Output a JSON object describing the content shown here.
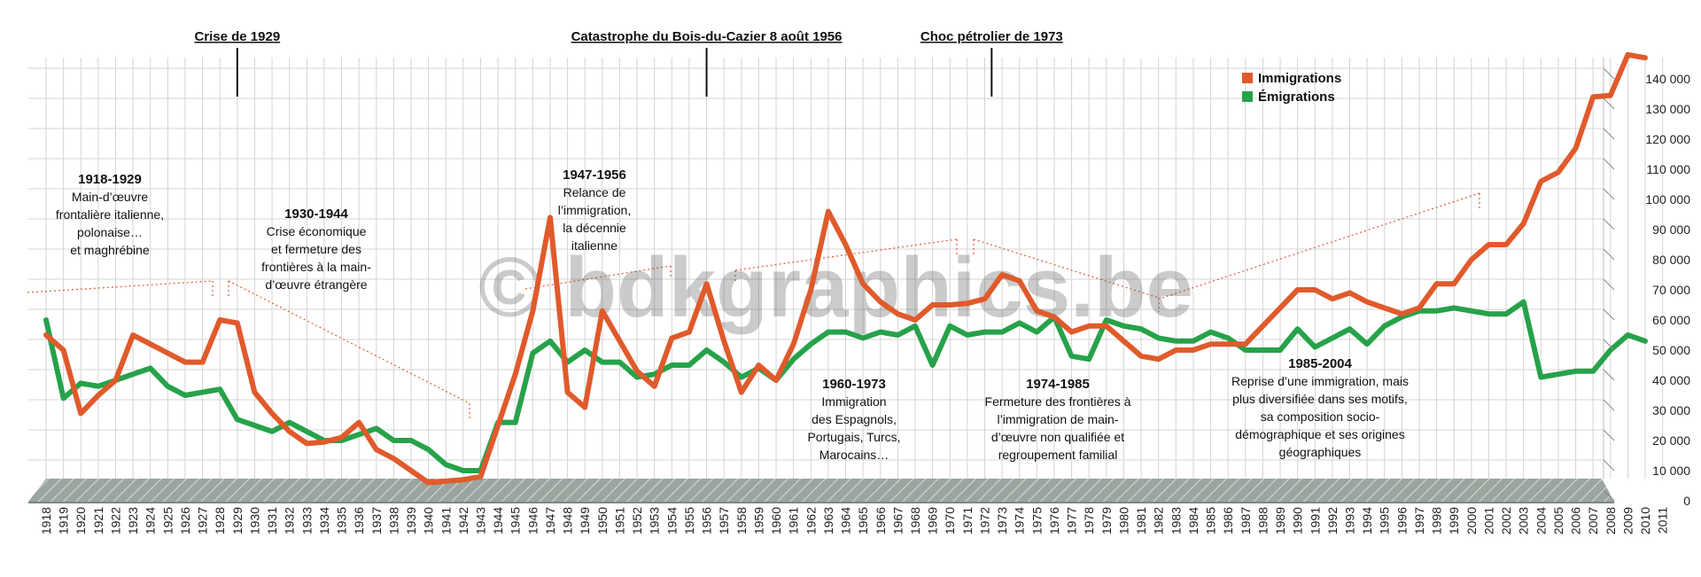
{
  "colors": {
    "immigration": "#e05a2b",
    "emigration": "#26a24a",
    "grid": "#d4d4d4",
    "base": "#9aa59f",
    "guide": "#e05a2b"
  },
  "watermark": "© bdkgraphics.be",
  "events": [
    {
      "label": "Crise de 1929",
      "year": 1929
    },
    {
      "label": "Catastrophe du Bois-du-Cazier 8 août 1956",
      "year": 1956
    },
    {
      "label": "Choc pétrolier de 1973",
      "year": 1972.4
    }
  ],
  "annotations": [
    {
      "title": "1918-1929",
      "lines": [
        "Main-d’œuvre",
        "frontalière italienne,",
        "polonaise…",
        "et maghrébine"
      ]
    },
    {
      "title": "1930-1944",
      "lines": [
        "Crise économique",
        "et fermeture des",
        "frontières à la main-",
        "d’œuvre étrangère"
      ]
    },
    {
      "title": "1947-1956",
      "lines": [
        "Relance de",
        "l’immigration,",
        "la décennie",
        "italienne"
      ]
    },
    {
      "title": "1960-1973",
      "lines": [
        "Immigration",
        "des Espagnols,",
        "Portugais, Turcs,",
        "Marocains…"
      ]
    },
    {
      "title": "1974-1985",
      "lines": [
        "Fermeture des frontières à",
        "l’immigration de main-",
        "d’œuvre non qualifiée et",
        "regroupement familial"
      ]
    },
    {
      "title": "1985-2004",
      "lines": [
        "Reprise d’une immigration, mais",
        "plus diversifiée dans ses motifs,",
        "sa composition socio-",
        "démographique et ses origines",
        "géographiques"
      ]
    }
  ],
  "chart_data": {
    "type": "line",
    "title": "",
    "xlabel": "",
    "ylabel": "",
    "xlim": [
      1918,
      2011
    ],
    "ylim": [
      0,
      150000
    ],
    "y_ticks": [
      0,
      10000,
      20000,
      30000,
      40000,
      50000,
      60000,
      70000,
      80000,
      90000,
      100000,
      110000,
      120000,
      130000,
      140000
    ],
    "y_tick_labels": [
      "0",
      "10 000",
      "20 000",
      "30 000",
      "40 000",
      "50 000",
      "60 000",
      "70 000",
      "80 000",
      "90 000",
      "100 000",
      "110 000",
      "120 000",
      "130 000",
      "140 000"
    ],
    "x_tick_labels": [
      "1918",
      "1919",
      "1920",
      "1921",
      "1922",
      "1923",
      "1924",
      "1925",
      "1926",
      "1927",
      "1928",
      "1929",
      "1930",
      "1931",
      "1932",
      "1933",
      "1934",
      "1935",
      "1936",
      "1937",
      "1938",
      "1939",
      "1940",
      "1941",
      "1942",
      "1943",
      "1944",
      "1945",
      "1946",
      "1947",
      "1948",
      "1949",
      "1950",
      "1951",
      "1952",
      "1953",
      "1954",
      "1955",
      "1956",
      "1957",
      "1958",
      "1959",
      "1960",
      "1961",
      "1962",
      "1963",
      "1964",
      "1965",
      "1966",
      "1967",
      "1968",
      "1969",
      "1970",
      "1971",
      "1972",
      "1973",
      "1974",
      "1975",
      "1976",
      "1977",
      "1978",
      "1979",
      "1980",
      "1981",
      "1982",
      "1983",
      "1984",
      "1985",
      "1986",
      "1987",
      "1988",
      "1989",
      "1990",
      "1991",
      "1992",
      "1993",
      "1994",
      "1995",
      "1996",
      "1997",
      "1998",
      "1999",
      "2000",
      "2001",
      "2002",
      "2003",
      "2004",
      "2005",
      "2006",
      "2007",
      "2008",
      "2009",
      "2010",
      "2011"
    ],
    "legend": "top-right",
    "grid": true,
    "series": [
      {
        "name": "Immigrations",
        "x": [
          1918,
          1919,
          1920,
          1921,
          1922,
          1923,
          1924,
          1925,
          1926,
          1927,
          1928,
          1929,
          1930,
          1931,
          1932,
          1933,
          1934,
          1935,
          1936,
          1937,
          1938,
          1939,
          1940,
          1941,
          1942,
          1943,
          1944,
          1945,
          1946,
          1947,
          1948,
          1949,
          1950,
          1951,
          1952,
          1953,
          1954,
          1955,
          1956,
          1957,
          1958,
          1959,
          1960,
          1961,
          1962,
          1963,
          1964,
          1965,
          1966,
          1967,
          1968,
          1969,
          1970,
          1971,
          1972,
          1973,
          1974,
          1975,
          1976,
          1977,
          1978,
          1979,
          1980,
          1981,
          1982,
          1983,
          1984,
          1985,
          1986,
          1987,
          1988,
          1989,
          1990,
          1991,
          1992,
          1993,
          1994,
          1995,
          1996,
          1997,
          1998,
          1999,
          2000,
          2001,
          2002,
          2003,
          2004,
          2005,
          2006,
          2007,
          2008,
          2009,
          2010
        ],
        "values": [
          55000,
          50000,
          29000,
          35000,
          40000,
          55000,
          52000,
          49000,
          46000,
          46000,
          60000,
          59000,
          36000,
          29000,
          23000,
          19000,
          19500,
          21000,
          26000,
          17000,
          14000,
          10000,
          6000,
          6500,
          7000,
          8000,
          25000,
          42000,
          63000,
          94000,
          36000,
          31000,
          63000,
          53000,
          43000,
          38000,
          54000,
          56000,
          72000,
          53000,
          36000,
          45000,
          40000,
          52000,
          70000,
          96000,
          85000,
          72000,
          66000,
          62000,
          60000,
          65000,
          65000,
          65500,
          67000,
          75000,
          73000,
          63000,
          61000,
          56000,
          58000,
          58000,
          53000,
          48000,
          47000,
          50000,
          50000,
          52000,
          52000,
          52000,
          58000,
          64000,
          70000,
          70000,
          67000,
          69000,
          66000,
          64000,
          62000,
          64000,
          72000,
          72000,
          80000,
          85000,
          85000,
          92000,
          106000,
          109000,
          117000,
          134000,
          134500,
          148000,
          147000
        ]
      },
      {
        "name": "Émigrations",
        "x": [
          1918,
          1919,
          1920,
          1921,
          1922,
          1923,
          1924,
          1925,
          1926,
          1927,
          1928,
          1929,
          1930,
          1931,
          1932,
          1933,
          1934,
          1935,
          1936,
          1937,
          1938,
          1939,
          1940,
          1941,
          1942,
          1943,
          1944,
          1945,
          1946,
          1947,
          1948,
          1949,
          1950,
          1951,
          1952,
          1953,
          1954,
          1955,
          1956,
          1957,
          1958,
          1959,
          1960,
          1961,
          1962,
          1963,
          1964,
          1965,
          1966,
          1967,
          1968,
          1969,
          1970,
          1971,
          1972,
          1973,
          1974,
          1975,
          1976,
          1977,
          1978,
          1979,
          1980,
          1981,
          1982,
          1983,
          1984,
          1985,
          1986,
          1987,
          1988,
          1989,
          1990,
          1991,
          1992,
          1993,
          1994,
          1995,
          1996,
          1997,
          1998,
          1999,
          2000,
          2001,
          2002,
          2003,
          2004,
          2005,
          2006,
          2007,
          2008,
          2009,
          2010
        ],
        "values": [
          60000,
          34000,
          39000,
          38000,
          40000,
          42000,
          44000,
          38000,
          35000,
          36000,
          37000,
          27000,
          25000,
          23000,
          26000,
          23000,
          20000,
          20000,
          22000,
          24000,
          20000,
          20000,
          17000,
          12000,
          10000,
          10000,
          26000,
          26000,
          49000,
          53000,
          46000,
          50000,
          46000,
          46000,
          41000,
          42000,
          45000,
          45000,
          50000,
          46000,
          41000,
          44000,
          40000,
          47000,
          52000,
          56000,
          56000,
          54000,
          56000,
          55000,
          58000,
          45000,
          58000,
          55000,
          56000,
          56000,
          59000,
          56000,
          61000,
          48000,
          47000,
          60000,
          58000,
          57000,
          54000,
          53000,
          53000,
          56000,
          54000,
          50000,
          50000,
          50000,
          57000,
          51000,
          54000,
          57000,
          52000,
          58000,
          61000,
          63000,
          63000,
          64000,
          63000,
          62000,
          62000,
          66000,
          41000,
          42000,
          43000,
          43000,
          50000,
          55000,
          53000
        ]
      }
    ]
  }
}
